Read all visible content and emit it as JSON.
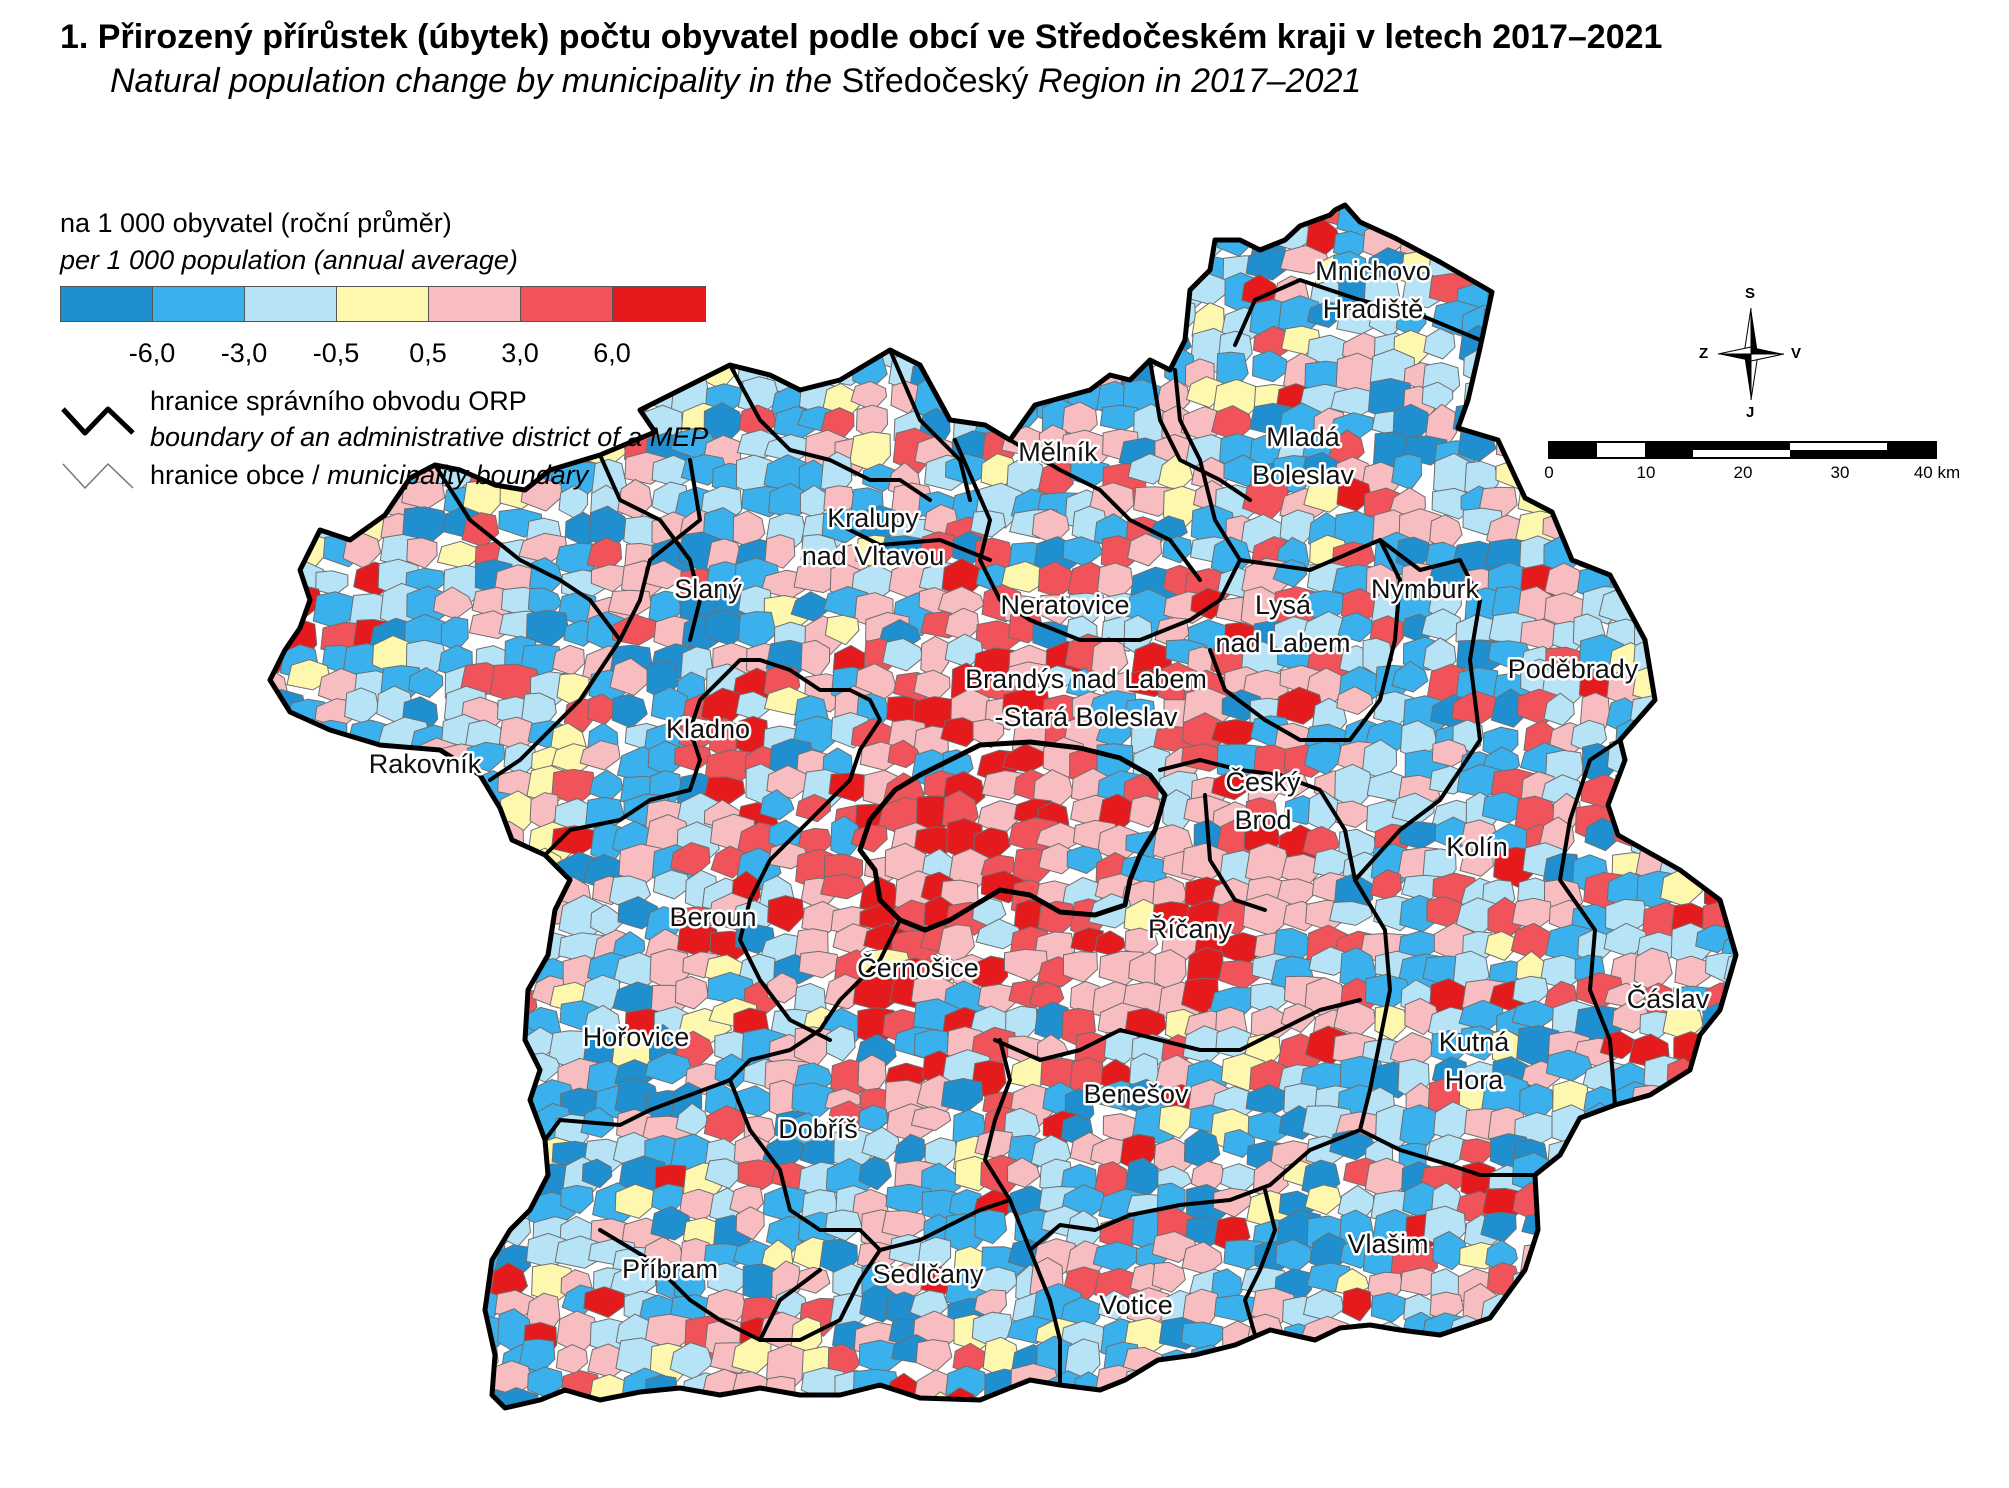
{
  "header": {
    "title": "1. Přirozený přírůstek (úbytek) počtu obyvatel podle obcí ve Středočeském kraji v letech 2017–2021",
    "subtitle_a": "Natural population change by municipality in the ",
    "subtitle_b": "Středočeský",
    "subtitle_c": " Region in 2017–2021"
  },
  "legend": {
    "unit": "na 1 000 obyvatel (roční průměr)",
    "unit_en": "per 1 000 population (annual average)",
    "classes": [
      "#1f8fd0",
      "#3ab1ec",
      "#b7e3f7",
      "#fdf8ae",
      "#f8bdc0",
      "#f0545a",
      "#e41a1c"
    ],
    "ticks": [
      "-6,0",
      "-3,0",
      "-0,5",
      "0,5",
      "3,0",
      "6,0"
    ],
    "orp_boundary": "hranice správního obvodu ORP",
    "orp_boundary_en": "boundary of an administrative district of a MEP",
    "muni_boundary": "hranice obce / ",
    "muni_boundary_en": "municipality boundary"
  },
  "compass": {
    "north": "S",
    "south": "J",
    "west": "Z",
    "east": "V"
  },
  "scalebar": {
    "labels": [
      "0",
      "10",
      "20",
      "30",
      "40 km"
    ]
  },
  "districts": [
    {
      "name": "Mnichovo Hradiště",
      "lines": [
        "Mnichovo",
        "Hradiště"
      ]
    },
    {
      "name": "Mělník",
      "lines": [
        "Mělník"
      ]
    },
    {
      "name": "Mladá Boleslav",
      "lines": [
        "Mladá",
        "Boleslav"
      ]
    },
    {
      "name": "Kralupy nad Vltavou",
      "lines": [
        "Kralupy",
        "nad Vltavou"
      ]
    },
    {
      "name": "Slaný",
      "lines": [
        "Slaný"
      ]
    },
    {
      "name": "Neratovice",
      "lines": [
        "Neratovice"
      ]
    },
    {
      "name": "Lysá nad Labem",
      "lines": [
        "Lysá",
        "nad Labem"
      ]
    },
    {
      "name": "Nymburk",
      "lines": [
        "Nymburk"
      ]
    },
    {
      "name": "Brandýs nad Labem-Stará Boleslav",
      "lines": [
        "Brandýs nad Labem",
        "-Stará Boleslav"
      ]
    },
    {
      "name": "Poděbrady",
      "lines": [
        "Poděbrady"
      ]
    },
    {
      "name": "Kladno",
      "lines": [
        "Kladno"
      ]
    },
    {
      "name": "Rakovník",
      "lines": [
        "Rakovník"
      ]
    },
    {
      "name": "Český Brod",
      "lines": [
        "Český",
        "Brod"
      ]
    },
    {
      "name": "Kolín",
      "lines": [
        "Kolín"
      ]
    },
    {
      "name": "Beroun",
      "lines": [
        "Beroun"
      ]
    },
    {
      "name": "Říčany",
      "lines": [
        "Říčany"
      ]
    },
    {
      "name": "Černošice",
      "lines": [
        "Černošice"
      ]
    },
    {
      "name": "Čáslav",
      "lines": [
        "Čáslav"
      ]
    },
    {
      "name": "Hořovice",
      "lines": [
        "Hořovice"
      ]
    },
    {
      "name": "Kutná Hora",
      "lines": [
        "Kutná",
        "Hora"
      ]
    },
    {
      "name": "Benešov",
      "lines": [
        "Benešov"
      ]
    },
    {
      "name": "Dobříš",
      "lines": [
        "Dobříš"
      ]
    },
    {
      "name": "Vlašim",
      "lines": [
        "Vlašim"
      ]
    },
    {
      "name": "Příbram",
      "lines": [
        "Příbram"
      ]
    },
    {
      "name": "Sedlčany",
      "lines": [
        "Sedlčany"
      ]
    },
    {
      "name": "Votice",
      "lines": [
        "Votice"
      ]
    }
  ]
}
